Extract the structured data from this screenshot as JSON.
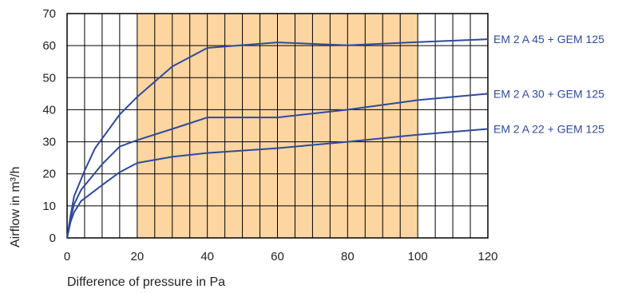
{
  "chart_data": {
    "type": "line",
    "xlabel": "Difference of pressure in Pa",
    "ylabel": "Airflow in m³/h",
    "xlim": [
      0,
      120
    ],
    "ylim": [
      0,
      70
    ],
    "x_ticks": [
      0,
      20,
      40,
      60,
      80,
      100,
      120
    ],
    "y_ticks": [
      0,
      10,
      20,
      30,
      40,
      50,
      60,
      70
    ],
    "grid": true,
    "highlight_range": {
      "x": [
        20,
        100
      ]
    },
    "colors": {
      "series": "#2e4a9e",
      "highlight": "#fcd5a0",
      "grid": "#000000",
      "label_text": "#2e4a9e"
    },
    "series": [
      {
        "name": "EM 2 A 45 + GEM 125",
        "points": [
          [
            0,
            0
          ],
          [
            1,
            7
          ],
          [
            2,
            13
          ],
          [
            5,
            21
          ],
          [
            8,
            28
          ],
          [
            15,
            38.5
          ],
          [
            20,
            44
          ],
          [
            30,
            53.5
          ],
          [
            40,
            59.3
          ],
          [
            60,
            61
          ],
          [
            80,
            60.1
          ],
          [
            100,
            61.1
          ],
          [
            120,
            62
          ]
        ]
      },
      {
        "name": "EM 2 A 30 + GEM 125",
        "points": [
          [
            0,
            0
          ],
          [
            1,
            6
          ],
          [
            2,
            10.5
          ],
          [
            4,
            15
          ],
          [
            10,
            23
          ],
          [
            15,
            28.5
          ],
          [
            20,
            30.5
          ],
          [
            30,
            34
          ],
          [
            40,
            37.6
          ],
          [
            60,
            37.6
          ],
          [
            80,
            40
          ],
          [
            100,
            43
          ],
          [
            120,
            45
          ]
        ]
      },
      {
        "name": "EM 2 A 22 + GEM 125",
        "points": [
          [
            0,
            0
          ],
          [
            1,
            5
          ],
          [
            2,
            8
          ],
          [
            4,
            11.5
          ],
          [
            10,
            16.5
          ],
          [
            15,
            20.5
          ],
          [
            20,
            23.4
          ],
          [
            30,
            25.3
          ],
          [
            40,
            26.5
          ],
          [
            60,
            28
          ],
          [
            80,
            30
          ],
          [
            100,
            32.2
          ],
          [
            120,
            34
          ]
        ]
      }
    ]
  }
}
